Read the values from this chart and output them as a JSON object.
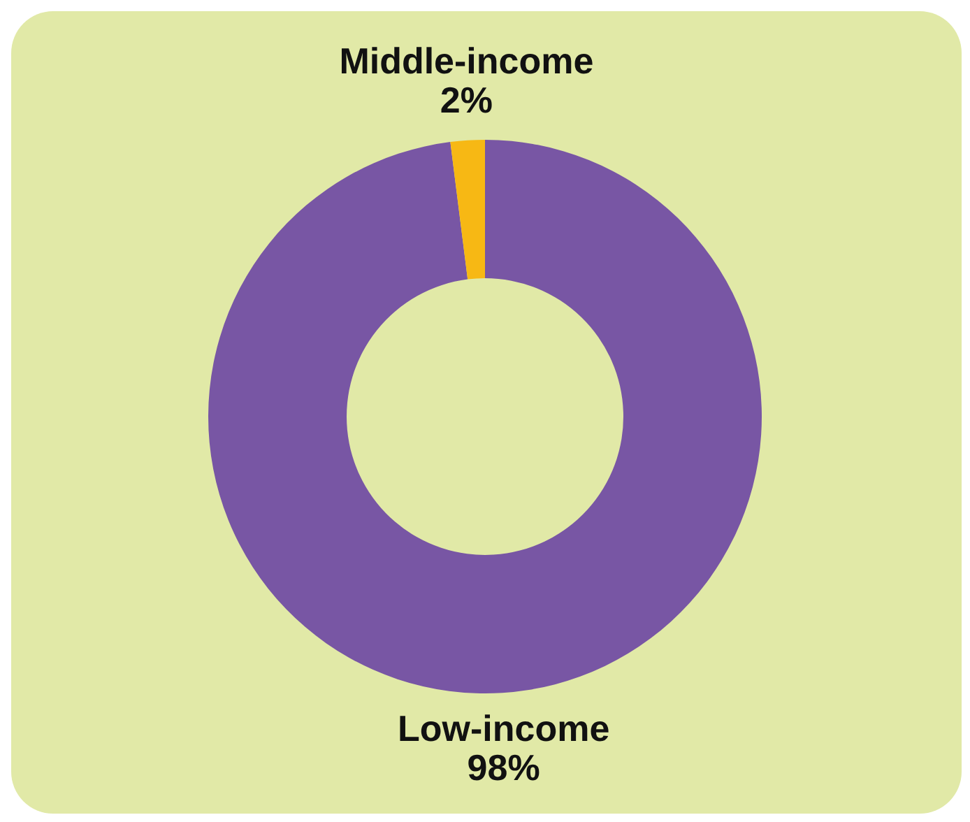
{
  "chart_data": {
    "type": "donut",
    "categories": [
      "Low-income",
      "Middle-income"
    ],
    "values": [
      98,
      2
    ],
    "colors": [
      "#7856a4",
      "#f7b814"
    ],
    "value_labels": [
      "98%",
      "2%"
    ]
  }
}
